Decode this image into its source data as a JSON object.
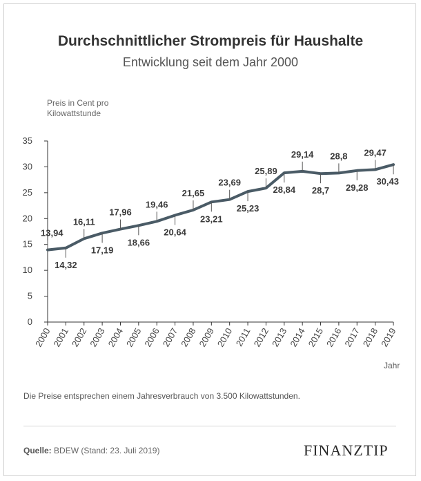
{
  "title": "Durchschnittlicher Strompreis für Haushalte",
  "subtitle": "Entwicklung seit dem Jahr 2000",
  "note": "Die Preise entsprechen einem Jahresverbrauch von 3.500 Kilowattstunden.",
  "source_label": "Quelle:",
  "source_text": "BDEW (Stand: 23. Juli 2019)",
  "logo_main": "FINANZ",
  "logo_tip": "TIP",
  "colors": {
    "line": "#4a5b66",
    "axis": "#333333",
    "frame": "#cfcfcf"
  },
  "chart_data": {
    "type": "line",
    "title": "Durchschnittlicher Strompreis für Haushalte",
    "subtitle": "Entwicklung seit dem Jahr 2000",
    "xlabel": "Jahr",
    "ylabel": "Preis in Cent pro Kilowattstunde",
    "ylim": [
      0,
      35
    ],
    "yticks": [
      0,
      5,
      10,
      15,
      20,
      25,
      30,
      35
    ],
    "grid": false,
    "x": [
      "2000",
      "2001",
      "2002",
      "2003",
      "2004",
      "2005",
      "2006",
      "2007",
      "2008",
      "2009",
      "2010",
      "2011",
      "2012",
      "2013",
      "2014",
      "2015",
      "2016",
      "2017",
      "2018",
      "2019"
    ],
    "values": [
      13.94,
      14.32,
      16.11,
      17.19,
      17.96,
      18.66,
      19.46,
      20.64,
      21.65,
      23.21,
      23.69,
      25.23,
      25.89,
      28.84,
      29.14,
      28.7,
      28.8,
      29.28,
      29.47,
      30.43
    ],
    "data_labels": [
      "13,94",
      "14,32",
      "16,11",
      "17,19",
      "17,96",
      "18,66",
      "19,46",
      "20,64",
      "21,65",
      "23,21",
      "23,69",
      "25,23",
      "25,89",
      "28,84",
      "29,14",
      "28,7",
      "28,8",
      "29,28",
      "29,47",
      "30,43"
    ],
    "label_positions": [
      "above",
      "below",
      "above",
      "below",
      "above",
      "below",
      "above",
      "below",
      "above",
      "below",
      "above",
      "below",
      "above",
      "below",
      "above",
      "below",
      "above",
      "below",
      "above",
      "below"
    ]
  }
}
